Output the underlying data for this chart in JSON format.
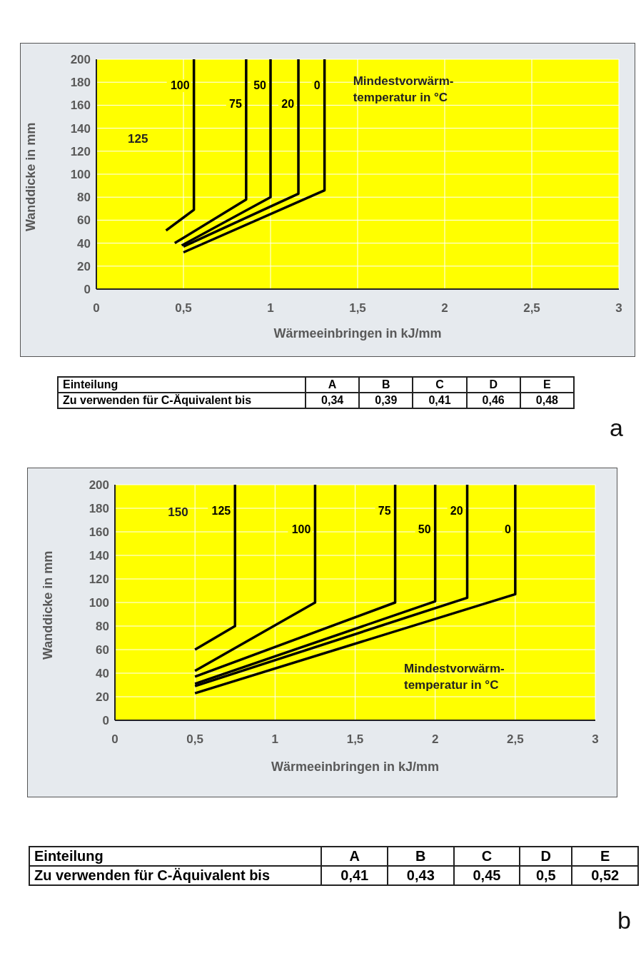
{
  "chart_data": [
    {
      "type": "line",
      "xlabel": "Wärmeeinbringen in kJ/mm",
      "ylabel": "Wanddicke in mm",
      "xlim": [
        0,
        3
      ],
      "ylim": [
        0,
        200
      ],
      "xticks": [
        0,
        {
          "value": 0.5,
          "label": "0,5"
        },
        1,
        {
          "value": 1.5,
          "label": "1,5"
        },
        2,
        {
          "value": 2.5,
          "label": "2,5"
        },
        3
      ],
      "yticks": [
        0,
        20,
        40,
        60,
        80,
        100,
        120,
        140,
        160,
        180,
        200
      ],
      "grid": true,
      "legend": false,
      "marker": "none",
      "line_style": "solid",
      "annotations": [
        "Mindestvorwärm-temperatur in °C",
        "125"
      ],
      "series": [
        {
          "name": "100",
          "color": "#000000",
          "x": [
            0.4,
            0.56,
            0.56
          ],
          "values": [
            51,
            69,
            200
          ]
        },
        {
          "name": "75",
          "color": "#000000",
          "x": [
            0.45,
            0.86,
            0.86
          ],
          "values": [
            40,
            78,
            200
          ]
        },
        {
          "name": "50",
          "color": "#000000",
          "x": [
            0.49,
            1.0,
            1.0
          ],
          "values": [
            38,
            80,
            200
          ]
        },
        {
          "name": "20",
          "color": "#000000",
          "x": [
            0.5,
            1.16,
            1.16
          ],
          "values": [
            37,
            83,
            200
          ]
        },
        {
          "name": "0",
          "color": "#000000",
          "x": [
            0.5,
            1.31,
            1.31
          ],
          "values": [
            32,
            86,
            200
          ]
        }
      ]
    },
    {
      "type": "other",
      "xlabel": "Einteilung",
      "ylabel": "Zu verwenden für C-Äquivalent bis",
      "categories": [
        "A",
        "B",
        "C",
        "D",
        "E"
      ],
      "annotations": [
        "0,34",
        "0,39",
        "0,41",
        "0,46",
        "0,48",
        "a"
      ]
    },
    {
      "type": "line",
      "xlabel": "Wärmeeinbringen in kJ/mm",
      "ylabel": "Wanddicke in mm",
      "xlim": [
        0,
        3
      ],
      "ylim": [
        0,
        200
      ],
      "xticks": [
        0,
        {
          "value": 0.5,
          "label": "0,5"
        },
        1,
        {
          "value": 1.5,
          "label": "1,5"
        },
        2,
        {
          "value": 2.5,
          "label": "2,5"
        },
        3
      ],
      "yticks": [
        0,
        20,
        40,
        60,
        80,
        100,
        120,
        140,
        160,
        180,
        200
      ],
      "grid": true,
      "legend": false,
      "marker": "none",
      "line_style": "solid",
      "annotations": [
        "Mindestvorwärm-temperatur in °C",
        "150"
      ],
      "series": [
        {
          "name": "125",
          "color": "#000000",
          "x": [
            0.5,
            0.75,
            0.75
          ],
          "values": [
            60,
            80,
            200
          ]
        },
        {
          "name": "100",
          "color": "#000000",
          "x": [
            0.5,
            1.25,
            1.25
          ],
          "values": [
            42,
            100,
            200
          ]
        },
        {
          "name": "75",
          "color": "#000000",
          "x": [
            0.5,
            1.75,
            1.75
          ],
          "values": [
            37,
            100,
            200
          ]
        },
        {
          "name": "50",
          "color": "#000000",
          "x": [
            0.5,
            2.0,
            2.0
          ],
          "values": [
            31,
            101,
            200
          ]
        },
        {
          "name": "20",
          "color": "#000000",
          "x": [
            0.5,
            2.2,
            2.2
          ],
          "values": [
            29,
            104,
            200
          ]
        },
        {
          "name": "0",
          "color": "#000000",
          "x": [
            0.5,
            2.5,
            2.5
          ],
          "values": [
            23,
            107,
            200
          ]
        }
      ]
    },
    {
      "type": "other",
      "xlabel": "Einteilung",
      "ylabel": "Zu verwenden für C-Äquivalent bis",
      "categories": [
        "A",
        "B",
        "C",
        "D",
        "E"
      ],
      "annotations": [
        "0,41",
        "0,43",
        "0,45",
        "0,5",
        "0,52",
        "b"
      ]
    }
  ]
}
